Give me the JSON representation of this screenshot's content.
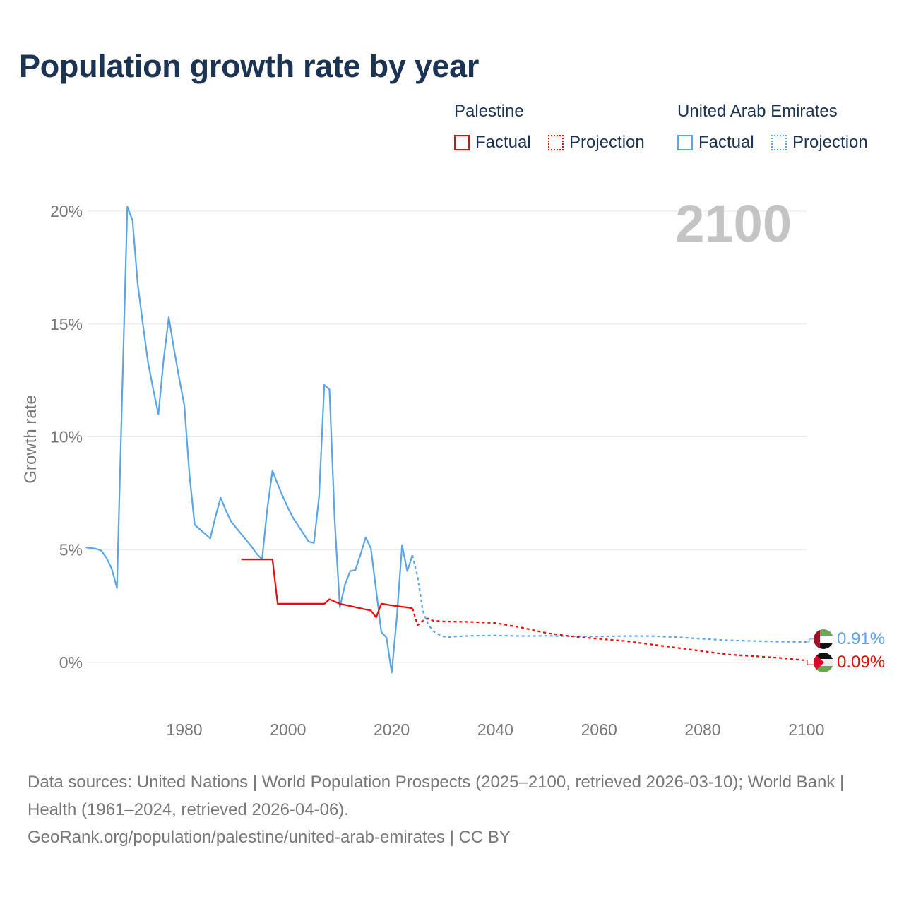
{
  "title": "Population growth rate by year",
  "legend": {
    "groups": [
      {
        "name": "Palestine",
        "color": "#ff0000",
        "factual": "Factual",
        "projection": "Projection"
      },
      {
        "name": "United Arab Emirates",
        "color": "#5aa4ea",
        "factual": "Factual",
        "projection": "Projection"
      }
    ]
  },
  "year_label": "2100",
  "source": {
    "line1": "Data sources: United Nations | World Population Prospects (2025–2100, retrieved 2026-03-10); World Bank | Health (1961–2024, retrieved 2026-04-06).",
    "line2": "GeoRank.org/population/palestine/united-arab-emirates | CC BY"
  },
  "chart_data": {
    "type": "line",
    "title": "Population growth rate by year",
    "xlabel": "",
    "ylabel": "Growth rate",
    "xlim": [
      1961,
      2100
    ],
    "ylim": [
      -1.5,
      21
    ],
    "x_ticks": [
      "1980",
      "2000",
      "2020",
      "2040",
      "2060",
      "2080",
      "2100"
    ],
    "x_tick_values": [
      1980,
      2000,
      2020,
      2040,
      2060,
      2080,
      2100
    ],
    "y_ticks": [
      "0%",
      "5%",
      "10%",
      "15%",
      "20%"
    ],
    "y_tick_values": [
      0,
      5,
      10,
      15,
      20
    ],
    "grid": true,
    "series": [
      {
        "name": "United Arab Emirates",
        "type": "Factual",
        "color": "#5aa4ea",
        "x": [
          1961,
          1962,
          1963,
          1964,
          1965,
          1966,
          1967,
          1968,
          1969,
          1970,
          1971,
          1972,
          1973,
          1974,
          1975,
          1976,
          1977,
          1978,
          1979,
          1980,
          1981,
          1982,
          1983,
          1984,
          1985,
          1986,
          1987,
          1988,
          1989,
          1990,
          1991,
          1992,
          1993,
          1994,
          1995,
          1996,
          1997,
          1998,
          1999,
          2000,
          2001,
          2002,
          2003,
          2004,
          2005,
          2006,
          2007,
          2008,
          2009,
          2010,
          2011,
          2012,
          2013,
          2014,
          2015,
          2016,
          2017,
          2018,
          2019,
          2020,
          2021,
          2022,
          2023,
          2024
        ],
        "y": [
          5.1,
          5.07,
          5.04,
          4.95,
          4.63,
          4.16,
          3.3,
          11.8,
          20.2,
          19.6,
          16.8,
          15.0,
          13.3,
          12.1,
          11.0,
          13.4,
          15.3,
          13.9,
          12.6,
          11.4,
          8.3,
          6.1,
          5.9,
          5.7,
          5.5,
          6.45,
          7.3,
          6.75,
          6.25,
          5.97,
          5.69,
          5.41,
          5.13,
          4.8,
          4.57,
          6.8,
          8.5,
          7.9,
          7.35,
          6.85,
          6.4,
          6.05,
          5.7,
          5.35,
          5.3,
          7.35,
          12.3,
          12.1,
          6.3,
          2.45,
          3.45,
          4.05,
          4.1,
          4.8,
          5.55,
          5.05,
          3.2,
          1.35,
          1.1,
          -0.45,
          2.0,
          5.2,
          4.05,
          4.75
        ]
      },
      {
        "name": "United Arab Emirates",
        "type": "Projection",
        "color": "#5aa4ea",
        "x": [
          2024,
          2025,
          2026,
          2027,
          2028,
          2029,
          2030,
          2031,
          2032,
          2035,
          2040,
          2045,
          2050,
          2055,
          2060,
          2065,
          2070,
          2075,
          2080,
          2085,
          2090,
          2095,
          2100
        ],
        "y": [
          4.75,
          3.8,
          2.3,
          1.7,
          1.4,
          1.25,
          1.15,
          1.12,
          1.15,
          1.18,
          1.2,
          1.17,
          1.18,
          1.16,
          1.15,
          1.17,
          1.17,
          1.12,
          1.05,
          0.98,
          0.95,
          0.92,
          0.91
        ]
      },
      {
        "name": "Palestine",
        "type": "Factual",
        "color": "#ff0000",
        "x": [
          1991,
          1992,
          1993,
          1994,
          1995,
          1996,
          1997,
          1998,
          1999,
          2000,
          2001,
          2002,
          2003,
          2004,
          2005,
          2006,
          2007,
          2008,
          2009,
          2010,
          2011,
          2012,
          2013,
          2014,
          2015,
          2016,
          2017,
          2018,
          2019,
          2020,
          2021,
          2022,
          2023,
          2024
        ],
        "y": [
          4.57,
          4.57,
          4.57,
          4.57,
          4.57,
          4.57,
          4.57,
          2.6,
          2.6,
          2.6,
          2.6,
          2.6,
          2.6,
          2.6,
          2.6,
          2.6,
          2.6,
          2.8,
          2.7,
          2.6,
          2.55,
          2.5,
          2.45,
          2.4,
          2.35,
          2.3,
          2.0,
          2.6,
          2.57,
          2.53,
          2.5,
          2.47,
          2.44,
          2.4
        ]
      },
      {
        "name": "Palestine",
        "type": "Projection",
        "color": "#ff0000",
        "x": [
          2024,
          2025,
          2026,
          2027,
          2028,
          2030,
          2035,
          2040,
          2045,
          2050,
          2055,
          2060,
          2065,
          2070,
          2075,
          2080,
          2085,
          2090,
          2095,
          2100
        ],
        "y": [
          2.4,
          1.65,
          1.85,
          1.95,
          1.85,
          1.82,
          1.8,
          1.75,
          1.55,
          1.3,
          1.15,
          1.05,
          0.95,
          0.8,
          0.65,
          0.5,
          0.35,
          0.28,
          0.2,
          0.09
        ]
      }
    ],
    "end_labels": [
      {
        "country": "United Arab Emirates",
        "value": "0.91%",
        "color": "#5aa4ea"
      },
      {
        "country": "Palestine",
        "value": "0.09%",
        "color": "#ff0000"
      }
    ]
  }
}
